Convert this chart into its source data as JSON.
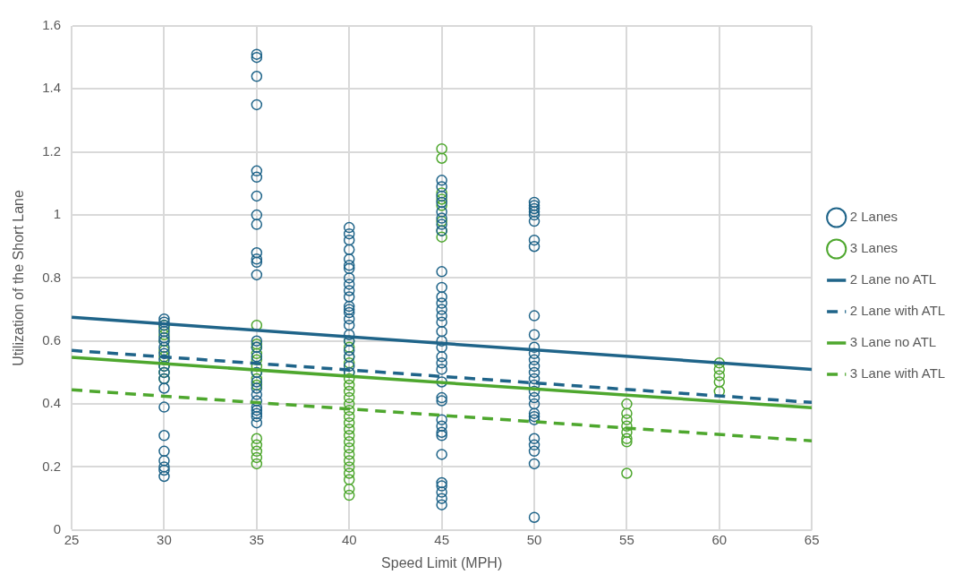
{
  "chart_data": {
    "type": "scatter",
    "xlabel": "Speed Limit (MPH)",
    "ylabel": "Utilization of the Short Lane",
    "xlim": [
      25,
      65
    ],
    "xticks": [
      25,
      30,
      35,
      40,
      45,
      50,
      55,
      60,
      65
    ],
    "ylim": [
      0,
      1.6
    ],
    "yticks": [
      0,
      0.2,
      0.4,
      0.6,
      0.8,
      1,
      1.2,
      1.4,
      1.6
    ],
    "grid": true,
    "legend": "right",
    "series": [
      {
        "name": "2 Lanes",
        "type": "scatter",
        "marker": "circle",
        "color": "#1f6489",
        "x": [
          30,
          30,
          30,
          30,
          30,
          30,
          30,
          30,
          30,
          30,
          30,
          30,
          30,
          30,
          30,
          30,
          30,
          30,
          30,
          30,
          35,
          35,
          35,
          35,
          35,
          35,
          35,
          35,
          35,
          35,
          35,
          35,
          35,
          35,
          35,
          35,
          35,
          35,
          35,
          35,
          35,
          35,
          35,
          35,
          35,
          35,
          40,
          40,
          40,
          40,
          40,
          40,
          40,
          40,
          40,
          40,
          40,
          40,
          40,
          40,
          40,
          40,
          40,
          40,
          40,
          40,
          40,
          40,
          45,
          45,
          45,
          45,
          45,
          45,
          45,
          45,
          45,
          45,
          45,
          45,
          45,
          45,
          45,
          45,
          45,
          45,
          45,
          45,
          45,
          45,
          45,
          45,
          45,
          45,
          45,
          45,
          45,
          45,
          45,
          45,
          45,
          45,
          50,
          50,
          50,
          50,
          50,
          50,
          50,
          50,
          50,
          50,
          50,
          50,
          50,
          50,
          50,
          50,
          50,
          50,
          50,
          50,
          50,
          50,
          50,
          50,
          50,
          50,
          50,
          50
        ],
        "values": [
          0.67,
          0.66,
          0.65,
          0.63,
          0.61,
          0.6,
          0.58,
          0.56,
          0.54,
          0.52,
          0.5,
          0.48,
          0.45,
          0.39,
          0.3,
          0.25,
          0.22,
          0.2,
          0.19,
          0.17,
          1.51,
          1.5,
          1.44,
          1.35,
          1.14,
          1.12,
          1.06,
          1.0,
          0.97,
          0.88,
          0.86,
          0.85,
          0.81,
          0.6,
          0.58,
          0.55,
          0.5,
          0.47,
          0.45,
          0.43,
          0.41,
          0.39,
          0.38,
          0.37,
          0.36,
          0.34,
          0.96,
          0.94,
          0.92,
          0.89,
          0.86,
          0.84,
          0.83,
          0.8,
          0.78,
          0.76,
          0.74,
          0.71,
          0.7,
          0.69,
          0.67,
          0.65,
          0.62,
          0.6,
          0.57,
          0.55,
          0.52,
          0.5,
          1.11,
          1.09,
          1.06,
          1.04,
          1.01,
          0.99,
          0.97,
          0.95,
          0.82,
          0.77,
          0.74,
          0.72,
          0.7,
          0.68,
          0.66,
          0.63,
          0.6,
          0.58,
          0.55,
          0.53,
          0.51,
          0.47,
          0.42,
          0.41,
          0.35,
          0.33,
          0.31,
          0.3,
          0.24,
          0.15,
          0.14,
          0.12,
          0.1,
          0.08,
          1.04,
          1.03,
          1.02,
          1.01,
          1.0,
          0.98,
          0.92,
          0.9,
          0.68,
          0.62,
          0.58,
          0.56,
          0.54,
          0.52,
          0.5,
          0.48,
          0.46,
          0.44,
          0.42,
          0.4,
          0.37,
          0.36,
          0.35,
          0.29,
          0.27,
          0.25,
          0.21,
          0.04
        ]
      },
      {
        "name": "3 Lanes",
        "type": "scatter",
        "marker": "circle",
        "color": "#4ea72e",
        "x": [
          30,
          30,
          30,
          30,
          30,
          30,
          30,
          30,
          30,
          35,
          35,
          35,
          35,
          35,
          35,
          35,
          35,
          35,
          35,
          35,
          35,
          35,
          35,
          40,
          40,
          40,
          40,
          40,
          40,
          40,
          40,
          40,
          40,
          40,
          40,
          40,
          40,
          40,
          40,
          40,
          40,
          40,
          40,
          40,
          40,
          40,
          40,
          45,
          45,
          45,
          45,
          45,
          45,
          45,
          45,
          55,
          55,
          55,
          55,
          55,
          55,
          55,
          55,
          60,
          60,
          60,
          60,
          60
        ],
        "values": [
          0.65,
          0.64,
          0.62,
          0.6,
          0.57,
          0.55,
          0.52,
          0.5,
          0.48,
          0.65,
          0.59,
          0.58,
          0.56,
          0.54,
          0.52,
          0.5,
          0.48,
          0.46,
          0.29,
          0.27,
          0.25,
          0.23,
          0.21,
          0.6,
          0.58,
          0.55,
          0.53,
          0.5,
          0.48,
          0.46,
          0.44,
          0.42,
          0.4,
          0.38,
          0.36,
          0.34,
          0.32,
          0.3,
          0.28,
          0.26,
          0.24,
          0.22,
          0.2,
          0.18,
          0.16,
          0.13,
          0.11,
          1.21,
          1.18,
          1.07,
          1.05,
          1.03,
          0.98,
          0.95,
          0.93,
          0.4,
          0.37,
          0.35,
          0.33,
          0.31,
          0.29,
          0.28,
          0.18,
          0.53,
          0.51,
          0.49,
          0.47,
          0.44
        ]
      },
      {
        "name": "2 Lane no ATL",
        "type": "line",
        "marker": "none",
        "line_style": "solid",
        "color": "#1f6489",
        "x": [
          25,
          65
        ],
        "values": [
          0.675,
          0.51
        ]
      },
      {
        "name": "2 Lane with ATL",
        "type": "line",
        "marker": "none",
        "line_style": "dashed",
        "color": "#1f6489",
        "x": [
          25,
          65
        ],
        "values": [
          0.57,
          0.405
        ]
      },
      {
        "name": "3 Lane no ATL",
        "type": "line",
        "marker": "none",
        "line_style": "solid",
        "color": "#4ea72e",
        "x": [
          25,
          65
        ],
        "values": [
          0.548,
          0.388
        ]
      },
      {
        "name": "3 Lane with ATL",
        "type": "line",
        "marker": "none",
        "line_style": "dashed",
        "color": "#4ea72e",
        "x": [
          25,
          65
        ],
        "values": [
          0.445,
          0.283
        ]
      }
    ]
  }
}
